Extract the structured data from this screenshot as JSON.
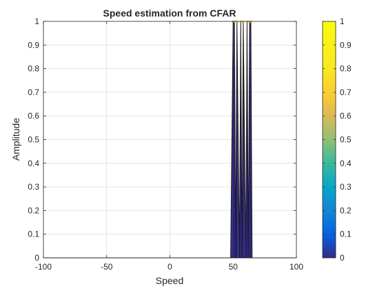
{
  "chart_data": {
    "type": "bar",
    "title": "Speed estimation from CFAR",
    "xlabel": "Speed",
    "ylabel": "Amplitude",
    "xlim": [
      -100,
      100
    ],
    "ylim": [
      0,
      1
    ],
    "xticks": [
      "-100",
      "-50",
      "0",
      "50",
      "100"
    ],
    "yticks": [
      "0",
      "0.1",
      "0.2",
      "0.3",
      "0.4",
      "0.5",
      "0.6",
      "0.7",
      "0.8",
      "0.9",
      "1"
    ],
    "grid": true,
    "colorbar": {
      "colormap": "parula",
      "range": [
        0,
        1
      ],
      "ticks": [
        "0",
        "0.1",
        "0.2",
        "0.3",
        "0.4",
        "0.5",
        "0.6",
        "0.7",
        "0.8",
        "0.9",
        "1"
      ]
    },
    "series": [
      {
        "x": [
          48,
          50,
          51,
          52,
          53,
          55,
          56,
          57,
          58,
          60,
          61,
          62,
          63,
          64,
          65
        ],
        "y": [
          0,
          1,
          1,
          0,
          1,
          0,
          1,
          0,
          1,
          0,
          1,
          0,
          1,
          1,
          0
        ]
      }
    ]
  }
}
